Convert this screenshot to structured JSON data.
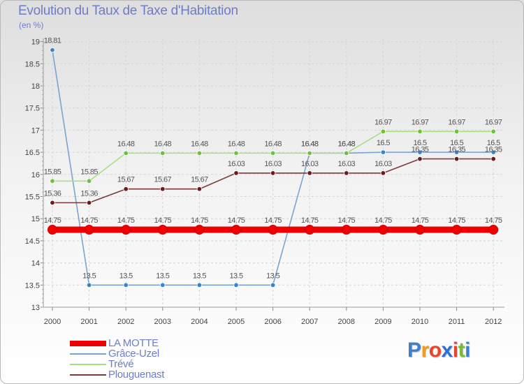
{
  "chart_data": {
    "type": "line",
    "title": "Evolution du Taux de Taxe d'Habitation",
    "ylabel": "(en %)",
    "xlabel": "",
    "ylim": [
      13,
      19
    ],
    "yticks": [
      13,
      13.5,
      14,
      14.5,
      15,
      15.5,
      16,
      16.5,
      17,
      17.5,
      18,
      18.5,
      19
    ],
    "ytick_labels": [
      "13",
      "13.5",
      "14",
      "14.5",
      "15",
      "15.5",
      "16",
      "16.5",
      "17",
      "17.5",
      "18",
      "18.5",
      "19"
    ],
    "categories": [
      "2000",
      "2001",
      "2002",
      "2003",
      "2004",
      "2005",
      "2006",
      "2007",
      "2008",
      "2009",
      "2010",
      "2011",
      "2012"
    ],
    "legend_position": "bottom-left",
    "series": [
      {
        "name": "LA MOTTE",
        "color": "#ee0000",
        "values": [
          14.75,
          14.75,
          14.75,
          14.75,
          14.75,
          14.75,
          14.75,
          14.75,
          14.75,
          14.75,
          14.75,
          14.75,
          14.75
        ],
        "labels": [
          "14.75",
          "14.75",
          "14.75",
          "14.75",
          "14.75",
          "14.75",
          "14.75",
          "14.75",
          "14.75",
          "14.75",
          "14.75",
          "14.75",
          "14.75"
        ]
      },
      {
        "name": "Grâce-Uzel",
        "color": "#7aa4cf",
        "marker": "#3d84c6",
        "values": [
          18.81,
          13.5,
          13.5,
          13.5,
          13.5,
          13.5,
          13.5,
          16.48,
          16.48,
          16.5,
          16.5,
          16.5,
          16.5
        ],
        "labels": [
          "18.81",
          "13.5",
          "13.5",
          "13.5",
          "13.5",
          "13.5",
          "13.5",
          "16.48",
          "16.48",
          "16.5",
          "16.5",
          "16.5",
          "16.5"
        ]
      },
      {
        "name": "Trévé",
        "color": "#a6e07f",
        "marker": "#6cc23b",
        "values": [
          15.85,
          15.85,
          16.48,
          16.48,
          16.48,
          16.48,
          16.48,
          16.48,
          16.48,
          16.97,
          16.97,
          16.97,
          16.97
        ],
        "labels": [
          "15.85",
          "15.85",
          "16.48",
          "16.48",
          "16.48",
          "16.48",
          "16.48",
          "16.48",
          "16.48",
          "16.97",
          "16.97",
          "16.97",
          "16.97"
        ]
      },
      {
        "name": "Plouguenast",
        "color": "#7a3b3b",
        "marker": "#6e1b1b",
        "values": [
          15.36,
          15.36,
          15.67,
          15.67,
          15.67,
          16.03,
          16.03,
          16.03,
          16.03,
          16.03,
          16.35,
          16.35,
          16.35
        ],
        "labels": [
          "15.36",
          "15.36",
          "15.67",
          "15.67",
          "15.67",
          "16.03",
          "16.03",
          "16.03",
          "16.03",
          "16.03",
          "16.35",
          "16.35",
          "16.35"
        ]
      }
    ]
  },
  "legend": [
    {
      "name": "LA MOTTE"
    },
    {
      "name": "Grâce-Uzel"
    },
    {
      "name": "Trévé"
    },
    {
      "name": "Plouguenast"
    }
  ],
  "logo": {
    "letters": [
      "P",
      "r",
      "o",
      "x",
      "i",
      "t",
      "i"
    ],
    "colors": [
      "#3c7fd1",
      "#f39a1a",
      "#e8452c",
      "#2e6fd6",
      "#e8452c",
      "#78bd2f",
      "#3c7fd1"
    ]
  }
}
